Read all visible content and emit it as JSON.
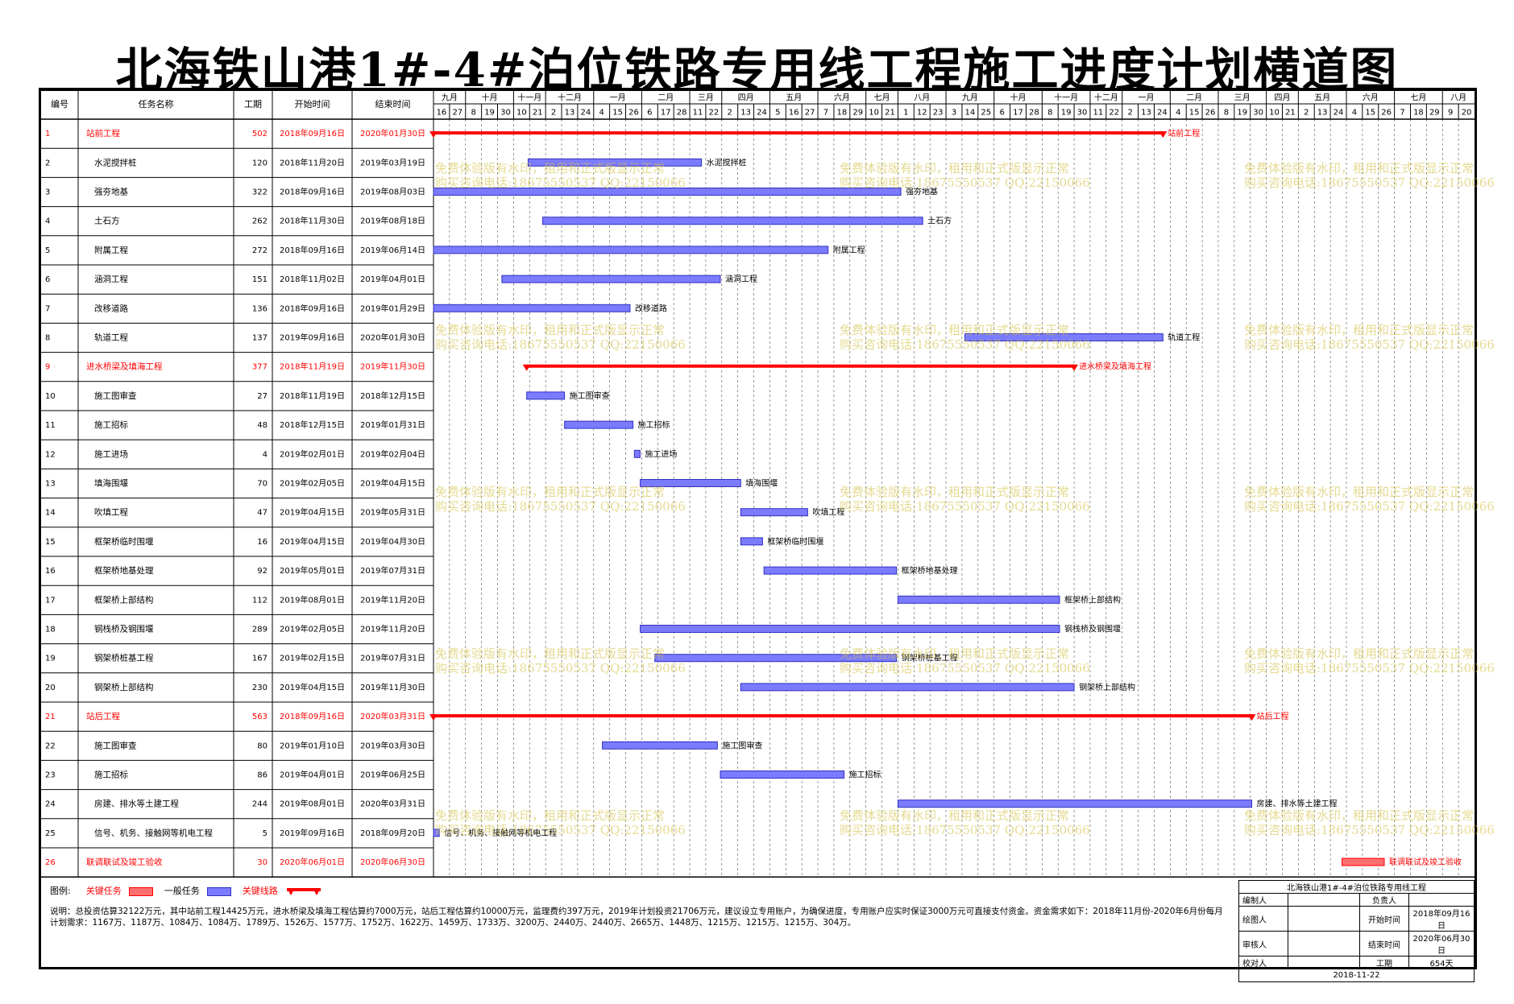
{
  "title": "北海铁山港1#-4#泊位铁路专用线工程施工进度计划横道图",
  "colors": {
    "critical": "#ff0000",
    "normal": "#7b7bff",
    "critical_summary": "#ff0000",
    "grid": "#000000",
    "watermark": "#d4c24a"
  },
  "header": {
    "col_id": "编号",
    "col_name": "任务名称",
    "col_dur": "工期",
    "col_start": "开始时间",
    "col_end": "结束时间"
  },
  "legend": {
    "label": "图例:",
    "critical_task": "关键任务",
    "normal_task": "一般任务",
    "critical_path": "关键线路"
  },
  "notes": "说明：总投资估算32122万元，其中站前工程14425万元，进水桥梁及填海工程估算约7000万元，站后工程估算约10000万元，监理费约397万元，2019年计划投资21706万元，建议设立专用账户，为确保进度，专用账户应实时保证3000万元可直接支付资金。资金需求如下：2018年11月份-2020年6月份每月计划需求：1167万、1187万、1084万、1084万、1789万、1526万、1577万、1752万、1622万、1459万、1733万、3200万、2440万、2440万、2665万、1448万、1215万、1215万、1215万、304万。",
  "watermark": {
    "line1": "免费体验版有水印，租用和正式版显示正常",
    "line2": "购买咨询电话:18675550537 QQ:22150066"
  },
  "infobox": {
    "project": "北海铁山港1#-4#泊位铁路专用线工程",
    "compiler_label": "编制人",
    "responsible_label": "负责人",
    "drawer_label": "绘图人",
    "start_label": "开始时间",
    "start_value": "2018年09月16日",
    "reviewer_label": "审核人",
    "end_label": "结束时间",
    "end_value": "2020年06月30日",
    "checker_label": "校对人",
    "duration_label": "工期",
    "duration_value": "654天",
    "date": "2018-11-22"
  },
  "chart_data": {
    "type": "gantt",
    "timeline": {
      "months": [
        {
          "label": "九月",
          "days": [
            "16",
            "27"
          ]
        },
        {
          "label": "十月",
          "days": [
            "8",
            "19",
            "30"
          ]
        },
        {
          "label": "十一月",
          "days": [
            "10",
            "21"
          ]
        },
        {
          "label": "十二月",
          "days": [
            "2",
            "13",
            "24"
          ]
        },
        {
          "label": "一月",
          "days": [
            "4",
            "15",
            "26"
          ]
        },
        {
          "label": "二月",
          "days": [
            "6",
            "17",
            "28"
          ]
        },
        {
          "label": "三月",
          "days": [
            "11",
            "22"
          ]
        },
        {
          "label": "四月",
          "days": [
            "2",
            "13",
            "24"
          ]
        },
        {
          "label": "五月",
          "days": [
            "5",
            "16",
            "27"
          ]
        },
        {
          "label": "六月",
          "days": [
            "7",
            "18",
            "29"
          ]
        },
        {
          "label": "七月",
          "days": [
            "10",
            "21"
          ]
        },
        {
          "label": "八月",
          "days": [
            "1",
            "12",
            "23"
          ]
        },
        {
          "label": "九月",
          "days": [
            "3",
            "14",
            "25"
          ]
        },
        {
          "label": "十月",
          "days": [
            "6",
            "17",
            "28"
          ]
        },
        {
          "label": "十一月",
          "days": [
            "8",
            "19",
            "30"
          ]
        },
        {
          "label": "十二月",
          "days": [
            "11",
            "22"
          ]
        },
        {
          "label": "一月",
          "days": [
            "2",
            "13",
            "24"
          ]
        },
        {
          "label": "二月",
          "days": [
            "4",
            "15",
            "26"
          ]
        },
        {
          "label": "三月",
          "days": [
            "8",
            "19",
            "30"
          ]
        },
        {
          "label": "四月",
          "days": [
            "10",
            "21"
          ]
        },
        {
          "label": "五月",
          "days": [
            "2",
            "13",
            "24"
          ]
        },
        {
          "label": "六月",
          "days": [
            "4",
            "15",
            "26"
          ]
        },
        {
          "label": "七月",
          "days": [
            "7",
            "18",
            "29"
          ]
        },
        {
          "label": "八月",
          "days": [
            "9",
            "20"
          ]
        }
      ]
    },
    "tasks": [
      {
        "id": "1",
        "name": "站前工程",
        "dur": "502",
        "start": "2018年09月16日",
        "end": "2020年01月30日",
        "s": "2018-09-16",
        "e": "2020-01-30",
        "kind": "summary"
      },
      {
        "id": "2",
        "name": "水泥搅拌桩",
        "dur": "120",
        "start": "2018年11月20日",
        "end": "2019年03月19日",
        "s": "2018-11-20",
        "e": "2019-03-19",
        "kind": "normal"
      },
      {
        "id": "3",
        "name": "强夯地基",
        "dur": "322",
        "start": "2018年09月16日",
        "end": "2019年08月03日",
        "s": "2018-09-16",
        "e": "2019-08-03",
        "kind": "normal"
      },
      {
        "id": "4",
        "name": "土石方",
        "dur": "262",
        "start": "2018年11月30日",
        "end": "2019年08月18日",
        "s": "2018-11-30",
        "e": "2019-08-18",
        "kind": "normal"
      },
      {
        "id": "5",
        "name": "附属工程",
        "dur": "272",
        "start": "2018年09月16日",
        "end": "2019年06月14日",
        "s": "2018-09-16",
        "e": "2019-06-14",
        "kind": "normal"
      },
      {
        "id": "6",
        "name": "涵洞工程",
        "dur": "151",
        "start": "2018年11月02日",
        "end": "2019年04月01日",
        "s": "2018-11-02",
        "e": "2019-04-01",
        "kind": "normal"
      },
      {
        "id": "7",
        "name": "改移道路",
        "dur": "136",
        "start": "2018年09月16日",
        "end": "2019年01月29日",
        "s": "2018-09-16",
        "e": "2019-01-29",
        "kind": "normal"
      },
      {
        "id": "8",
        "name": "轨道工程",
        "dur": "137",
        "start": "2019年09月16日",
        "end": "2020年01月30日",
        "s": "2019-09-16",
        "e": "2020-01-30",
        "kind": "normal"
      },
      {
        "id": "9",
        "name": "进水桥梁及填海工程",
        "dur": "377",
        "start": "2018年11月19日",
        "end": "2019年11月30日",
        "s": "2018-11-19",
        "e": "2019-11-30",
        "kind": "summary"
      },
      {
        "id": "10",
        "name": "施工图审查",
        "dur": "27",
        "start": "2018年11月19日",
        "end": "2018年12月15日",
        "s": "2018-11-19",
        "e": "2018-12-15",
        "kind": "normal"
      },
      {
        "id": "11",
        "name": "施工招标",
        "dur": "48",
        "start": "2018年12月15日",
        "end": "2019年01月31日",
        "s": "2018-12-15",
        "e": "2019-01-31",
        "kind": "normal"
      },
      {
        "id": "12",
        "name": "施工进场",
        "dur": "4",
        "start": "2019年02月01日",
        "end": "2019年02月04日",
        "s": "2019-02-01",
        "e": "2019-02-04",
        "kind": "normal"
      },
      {
        "id": "13",
        "name": "填海围堰",
        "dur": "70",
        "start": "2019年02月05日",
        "end": "2019年04月15日",
        "s": "2019-02-05",
        "e": "2019-04-15",
        "kind": "normal"
      },
      {
        "id": "14",
        "name": "吹填工程",
        "dur": "47",
        "start": "2019年04月15日",
        "end": "2019年05月31日",
        "s": "2019-04-15",
        "e": "2019-05-31",
        "kind": "normal"
      },
      {
        "id": "15",
        "name": "框架桥临时围堰",
        "dur": "16",
        "start": "2019年04月15日",
        "end": "2019年04月30日",
        "s": "2019-04-15",
        "e": "2019-04-30",
        "kind": "normal"
      },
      {
        "id": "16",
        "name": "框架桥地基处理",
        "dur": "92",
        "start": "2019年05月01日",
        "end": "2019年07月31日",
        "s": "2019-05-01",
        "e": "2019-07-31",
        "kind": "normal"
      },
      {
        "id": "17",
        "name": "框架桥上部结构",
        "dur": "112",
        "start": "2019年08月01日",
        "end": "2019年11月20日",
        "s": "2019-08-01",
        "e": "2019-11-20",
        "kind": "normal"
      },
      {
        "id": "18",
        "name": "钢栈桥及钢围堰",
        "dur": "289",
        "start": "2019年02月05日",
        "end": "2019年11月20日",
        "s": "2019-02-05",
        "e": "2019-11-20",
        "kind": "normal"
      },
      {
        "id": "19",
        "name": "钢架桥桩基工程",
        "dur": "167",
        "start": "2019年02月15日",
        "end": "2019年07月31日",
        "s": "2019-02-15",
        "e": "2019-07-31",
        "kind": "normal"
      },
      {
        "id": "20",
        "name": "钢架桥上部结构",
        "dur": "230",
        "start": "2019年04月15日",
        "end": "2019年11月30日",
        "s": "2019-04-15",
        "e": "2019-11-30",
        "kind": "normal"
      },
      {
        "id": "21",
        "name": "站后工程",
        "dur": "563",
        "start": "2018年09月16日",
        "end": "2020年03月31日",
        "s": "2018-09-16",
        "e": "2020-03-31",
        "kind": "summary"
      },
      {
        "id": "22",
        "name": "施工图审查",
        "dur": "80",
        "start": "2019年01月10日",
        "end": "2019年03月30日",
        "s": "2019-01-10",
        "e": "2019-03-30",
        "kind": "normal"
      },
      {
        "id": "23",
        "name": "施工招标",
        "dur": "86",
        "start": "2019年04月01日",
        "end": "2019年06月25日",
        "s": "2019-04-01",
        "e": "2019-06-25",
        "kind": "normal"
      },
      {
        "id": "24",
        "name": "房建、排水等土建工程",
        "dur": "244",
        "start": "2019年08月01日",
        "end": "2020年03月31日",
        "s": "2019-08-01",
        "e": "2020-03-31",
        "kind": "normal"
      },
      {
        "id": "25",
        "name": "信号、机务、接触网等机电工程",
        "dur": "5",
        "start": "2019年09月16日",
        "end": "2018年09月20日",
        "s": "2018-09-16",
        "e": "2018-09-20",
        "kind": "normal"
      },
      {
        "id": "26",
        "name": "联调联试及竣工验收",
        "dur": "30",
        "start": "2020年06月01日",
        "end": "2020年06月30日",
        "s": "2020-06-01",
        "e": "2020-06-30",
        "kind": "critical"
      }
    ]
  }
}
